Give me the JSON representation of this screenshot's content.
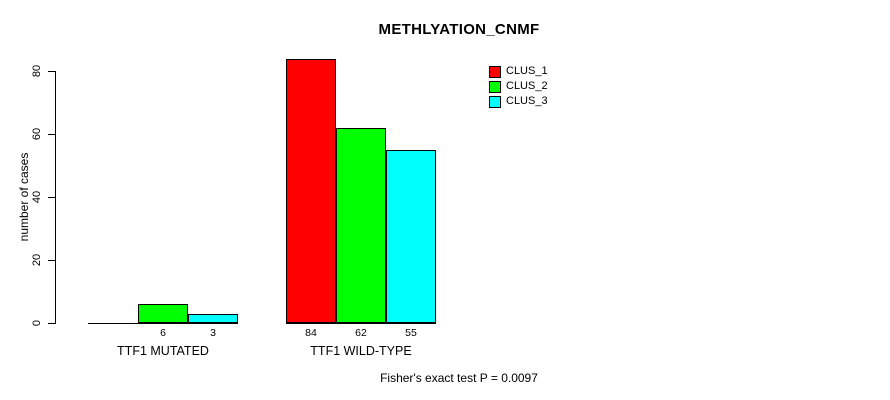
{
  "chart_data": {
    "type": "bar",
    "title": "METHLYATION_CNMF",
    "ylabel": "number of cases",
    "xlabel": "",
    "ylim": [
      0,
      84
    ],
    "yticks": [
      0,
      20,
      40,
      60,
      80
    ],
    "grid": false,
    "categories": [
      "TTF1 MUTATED",
      "TTF1 WILD-TYPE"
    ],
    "series": [
      {
        "name": "CLUS_1",
        "color": "#ff0000",
        "values": [
          0,
          84
        ]
      },
      {
        "name": "CLUS_2",
        "color": "#00ff00",
        "values": [
          6,
          62
        ]
      },
      {
        "name": "CLUS_3",
        "color": "#00ffff",
        "values": [
          3,
          55
        ]
      }
    ],
    "bar_value_labels": [
      [
        null,
        "6",
        "3"
      ],
      [
        "84",
        "62",
        "55"
      ]
    ],
    "legend_position": "top-right",
    "annotation": "Fisher's exact test P = 0.0097",
    "bar_border_color": "#000000",
    "axis_color": "#000000"
  }
}
